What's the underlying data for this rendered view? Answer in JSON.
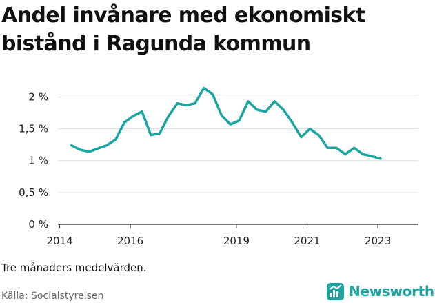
{
  "title": "Andel invånare med ekonomiskt bistånd i Ragunda kommun",
  "note": "Tre månaders medelvärden.",
  "source": "Källa: Socialstyrelsen",
  "brand": "Newsworthy",
  "colors": {
    "line": "#1aa6a0",
    "grid": "#dddddd",
    "axis": "#333333",
    "brand": "#1aa6a0"
  },
  "chart_data": {
    "type": "line",
    "title": "Andel invånare med ekonomiskt bistånd i Ragunda kommun",
    "xlabel": "",
    "ylabel": "",
    "x_ticks": [
      2014,
      2016,
      2019,
      2021,
      2023
    ],
    "x_tick_labels": [
      "2014",
      "2016",
      "2019",
      "2021",
      "2023"
    ],
    "y_ticks": [
      0,
      0.5,
      1,
      1.5,
      2
    ],
    "y_tick_labels": [
      "0 %",
      "0,5 %",
      "1 %",
      "1,5 %",
      "2 %"
    ],
    "xlim": [
      2013.95,
      2024.15
    ],
    "ylim": [
      0,
      2.2
    ],
    "grid": true,
    "series": [
      {
        "x": [
          2014.33,
          2014.58,
          2014.83,
          2015.08,
          2015.33,
          2015.58,
          2015.83,
          2016.08,
          2016.33,
          2016.58,
          2016.83,
          2017.08,
          2017.33,
          2017.58,
          2017.83,
          2018.08,
          2018.33,
          2018.58,
          2018.83,
          2019.08,
          2019.33,
          2019.58,
          2019.83,
          2020.08,
          2020.33,
          2020.58,
          2020.83,
          2021.08,
          2021.33,
          2021.58,
          2021.83,
          2022.08,
          2022.33,
          2022.58,
          2022.83,
          2023.08
        ],
        "values": [
          1.24,
          1.17,
          1.14,
          1.19,
          1.24,
          1.33,
          1.6,
          1.7,
          1.77,
          1.4,
          1.43,
          1.7,
          1.9,
          1.87,
          1.9,
          2.14,
          2.04,
          1.71,
          1.57,
          1.63,
          1.93,
          1.8,
          1.77,
          1.93,
          1.8,
          1.6,
          1.37,
          1.5,
          1.4,
          1.2,
          1.2,
          1.1,
          1.2,
          1.1,
          1.07,
          1.03
        ]
      }
    ]
  }
}
